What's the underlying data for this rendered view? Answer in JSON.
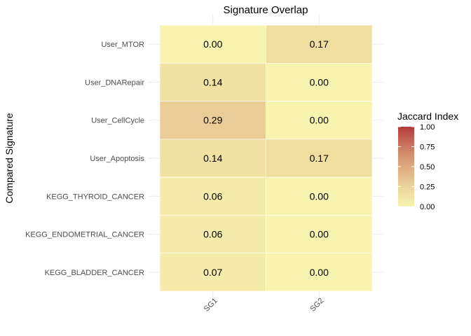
{
  "chart_data": {
    "type": "heatmap",
    "title": "Signature Overlap",
    "xlabel": "",
    "ylabel": "Compared Signature",
    "x": [
      "SG1",
      "SG2"
    ],
    "y": [
      "User_MTOR",
      "User_DNARepair",
      "User_CellCycle",
      "User_Apoptosis",
      "KEGG_THYROID_CANCER",
      "KEGG_ENDOMETRIAL_CANCER",
      "KEGG_BLADDER_CANCER"
    ],
    "values": [
      [
        0.0,
        0.17
      ],
      [
        0.14,
        0.0
      ],
      [
        0.29,
        0.0
      ],
      [
        0.14,
        0.17
      ],
      [
        0.06,
        0.0
      ],
      [
        0.06,
        0.0
      ],
      [
        0.07,
        0.0
      ]
    ],
    "value_labels": [
      [
        "0.00",
        "0.17"
      ],
      [
        "0.14",
        "0.00"
      ],
      [
        "0.29",
        "0.00"
      ],
      [
        "0.14",
        "0.17"
      ],
      [
        "0.06",
        "0.00"
      ],
      [
        "0.06",
        "0.00"
      ],
      [
        "0.07",
        "0.00"
      ]
    ],
    "legend": {
      "title": "Jaccard Index",
      "position": "right",
      "range": [
        0,
        1
      ],
      "ticks": [
        "1.00",
        "0.75",
        "0.50",
        "0.25",
        "0.00"
      ],
      "tick_values": [
        1.0,
        0.75,
        0.5,
        0.25,
        0.0
      ],
      "colors": [
        "#f8f4b0",
        "#b23a3a"
      ]
    },
    "grid": true
  }
}
